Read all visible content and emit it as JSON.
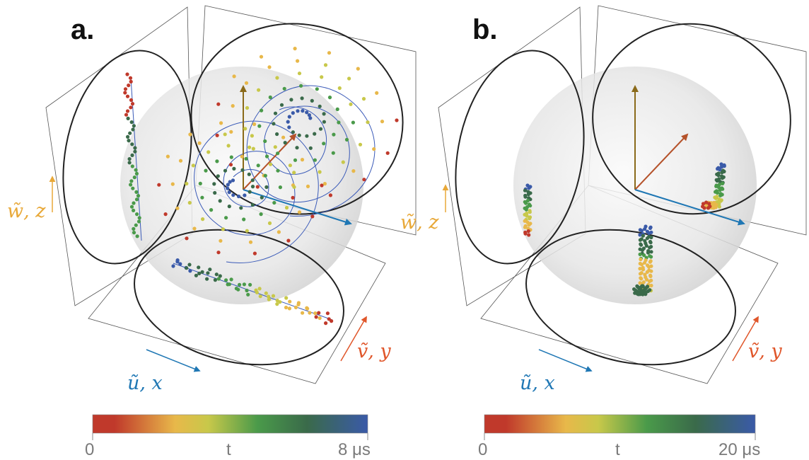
{
  "panels": [
    {
      "label": "a.",
      "axis_labels": {
        "u": "ũ,  x",
        "v": "ṽ,  y",
        "w": "w̃,  z"
      },
      "colorbar": {
        "min_label": "0",
        "mid_label": "t",
        "max_label": "8 μs"
      }
    },
    {
      "label": "b.",
      "axis_labels": {
        "u": "ũ,  x",
        "v": "ṽ,  y",
        "w": "w̃,  z"
      },
      "colorbar": {
        "min_label": "0",
        "mid_label": "t",
        "max_label": "20 μs"
      }
    }
  ],
  "colors": {
    "u_axis": "#1f77b4",
    "v_axis": "#e0562a",
    "w_axis": "#e8a838",
    "arrow_w": "#8a6a1a",
    "arrow_v": "#b5522a",
    "colormap": [
      "#c0392b",
      "#e8b84a",
      "#c8c84a",
      "#4a9a4a",
      "#3a6a4a",
      "#3a5aa8"
    ]
  }
}
